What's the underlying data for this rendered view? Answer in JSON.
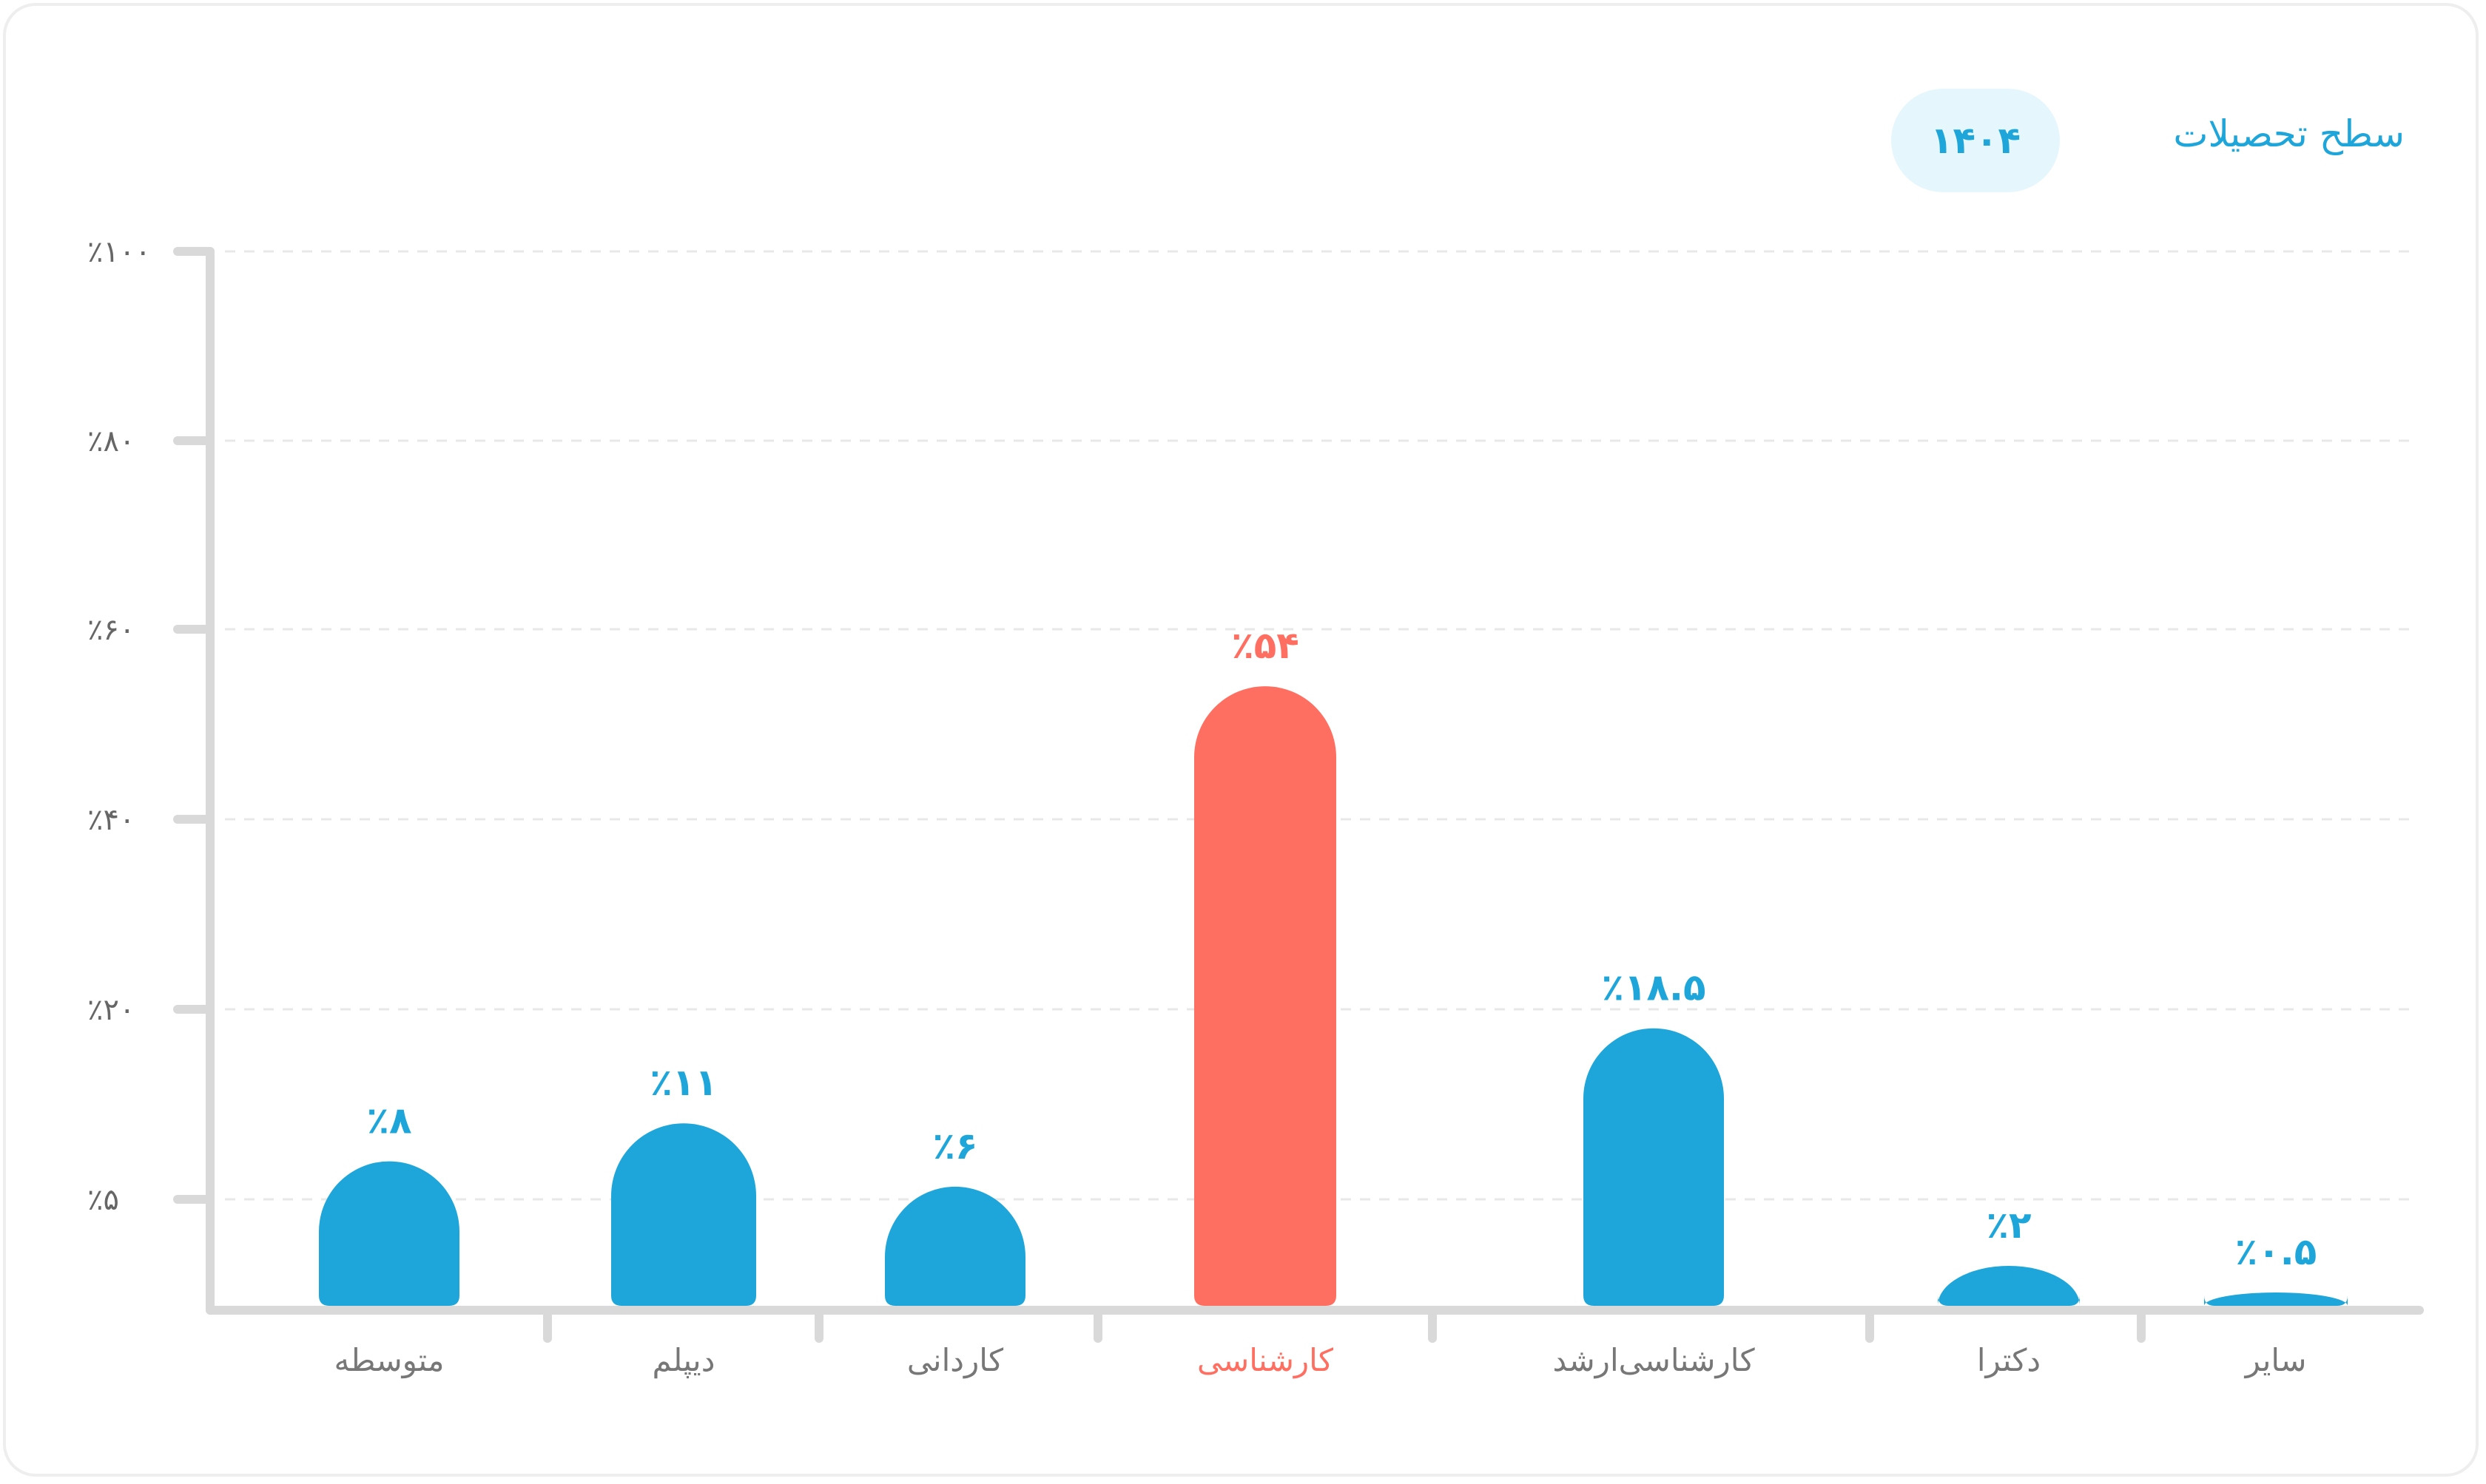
{
  "header": {
    "title": "سطح تحصیلات",
    "year": "۱۴۰۴"
  },
  "colors": {
    "bar": "#1ea6da",
    "highlight": "#ff6f61",
    "axis": "#d9d9d9",
    "grid": "#e8e8e8",
    "category_text": "#777777"
  },
  "chart_data": {
    "type": "bar",
    "title": "سطح تحصیلات",
    "xlabel": "",
    "ylabel": "",
    "ylim": [
      0,
      100
    ],
    "grid": true,
    "y_ticks": [
      {
        "value": 5,
        "label": "٪۵"
      },
      {
        "value": 20,
        "label": "٪۲۰"
      },
      {
        "value": 40,
        "label": "٪۴۰"
      },
      {
        "value": 60,
        "label": "٪۶۰"
      },
      {
        "value": 80,
        "label": "٪۸۰"
      },
      {
        "value": 100,
        "label": "٪۱۰۰"
      }
    ],
    "categories": [
      "سایر",
      "دکترا",
      "کارشناسی‌ارشد",
      "کارشناسی",
      "کاردانی",
      "دیپلم",
      "متوسطه"
    ],
    "values": [
      0.5,
      2,
      18.5,
      54,
      6,
      11,
      8
    ],
    "value_labels": [
      "٪۰.۵",
      "٪۲",
      "٪۱۸.۵",
      "٪۵۴",
      "٪۶",
      "٪۱۱",
      "٪۸"
    ],
    "highlight": "کارشناسی"
  }
}
